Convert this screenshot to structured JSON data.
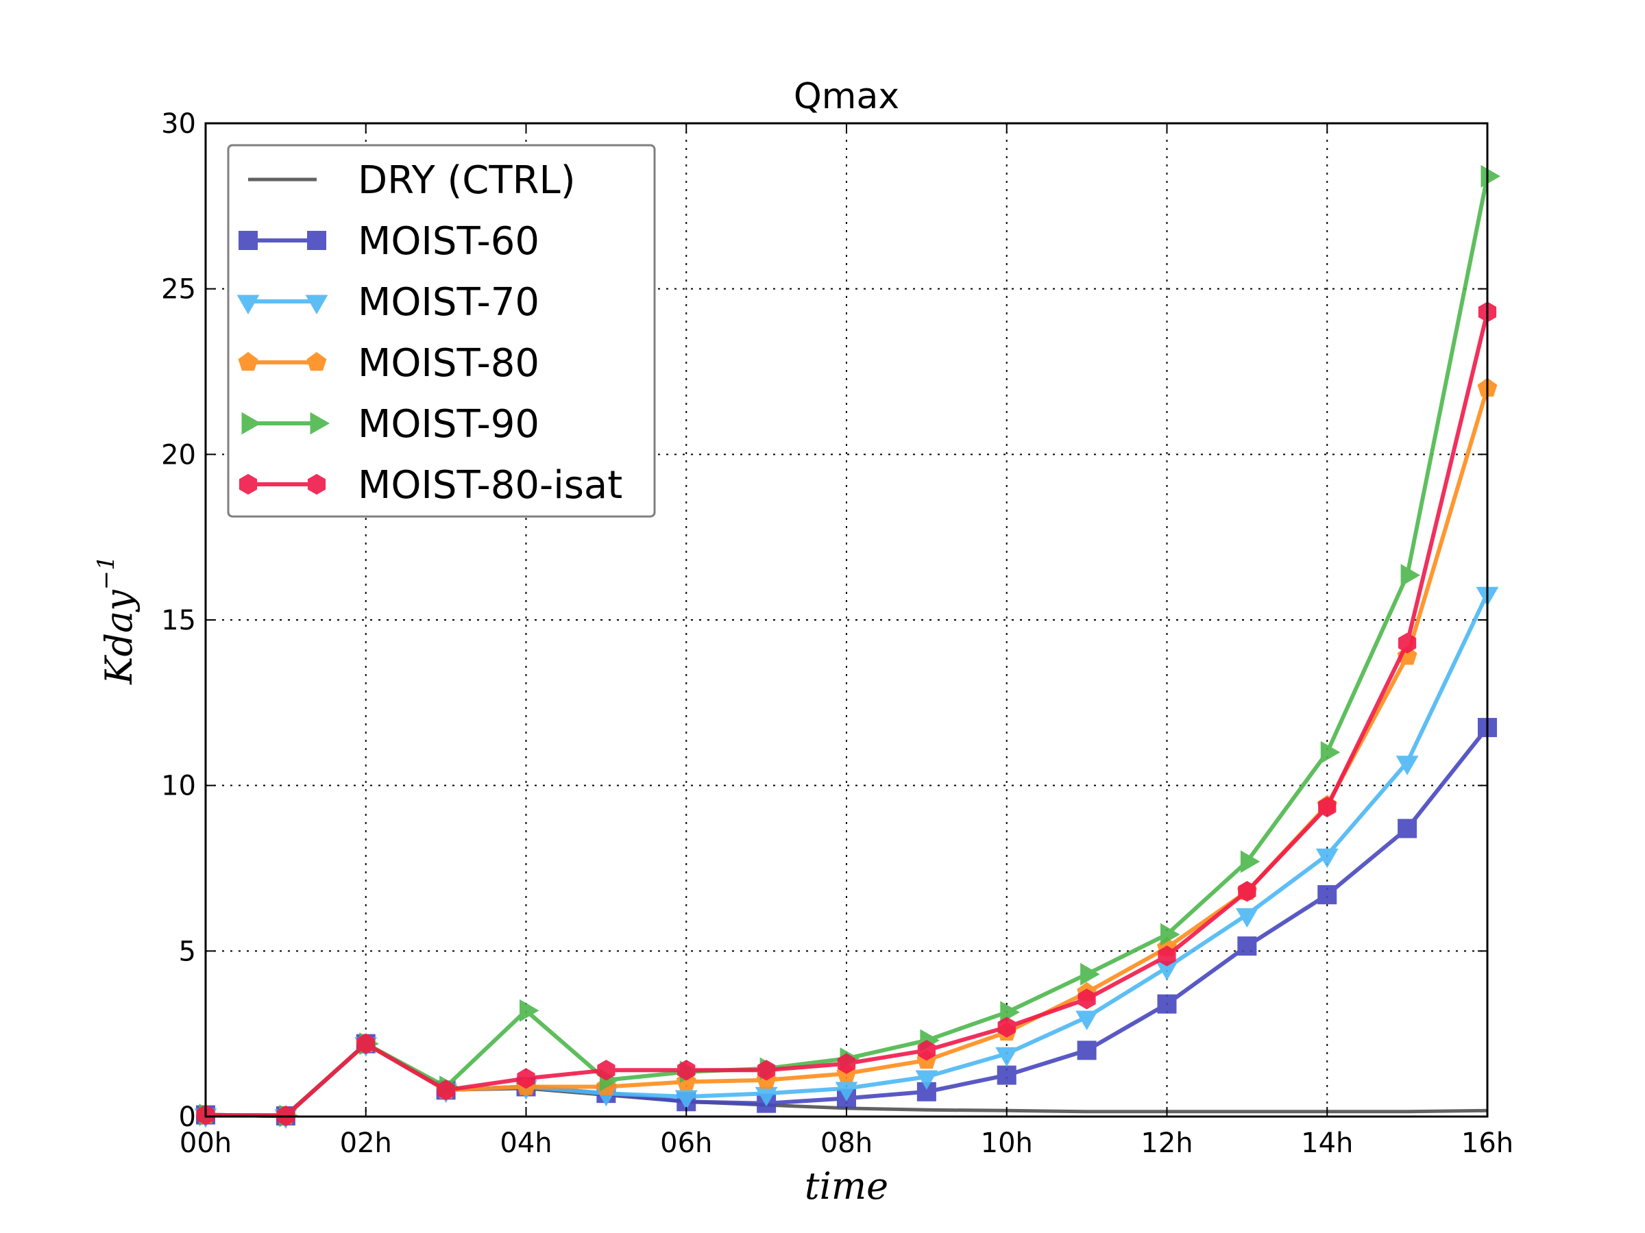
{
  "chart_data": {
    "type": "line",
    "title": "Qmax",
    "xlabel": "time",
    "ylabel": "Kday",
    "ylabel_superscript": "−1",
    "x": [
      0,
      1,
      2,
      3,
      4,
      5,
      6,
      7,
      8,
      9,
      10,
      11,
      12,
      13,
      14,
      15,
      16
    ],
    "x_ticks": [
      0,
      2,
      4,
      6,
      8,
      10,
      12,
      14,
      16
    ],
    "x_tick_labels": [
      "00h",
      "02h",
      "04h",
      "06h",
      "08h",
      "10h",
      "12h",
      "14h",
      "16h"
    ],
    "xlim": [
      0,
      16
    ],
    "ylim": [
      0,
      30
    ],
    "y_ticks": [
      0,
      5,
      10,
      15,
      20,
      25,
      30
    ],
    "y_tick_labels": [
      "0",
      "5",
      "10",
      "15",
      "20",
      "25",
      "30"
    ],
    "grid": true,
    "legend_position": "top-left",
    "series": [
      {
        "name": "DRY (CTRL)",
        "color": "#505050",
        "marker": "none",
        "values": [
          0.05,
          0.05,
          2.2,
          0.8,
          0.85,
          0.65,
          0.45,
          0.35,
          0.25,
          0.2,
          0.18,
          0.15,
          0.15,
          0.15,
          0.15,
          0.15,
          0.18
        ]
      },
      {
        "name": "MOIST-60",
        "color": "#4848bf",
        "marker": "square",
        "values": [
          0.05,
          0.02,
          2.2,
          0.8,
          0.9,
          0.7,
          0.45,
          0.4,
          0.55,
          0.75,
          1.25,
          2.0,
          3.4,
          5.15,
          6.7,
          8.7,
          11.75
        ]
      },
      {
        "name": "MOIST-70",
        "color": "#4cb8f5",
        "marker": "triangle-down",
        "values": [
          0.05,
          0.02,
          2.2,
          0.8,
          0.9,
          0.7,
          0.6,
          0.7,
          0.85,
          1.2,
          1.9,
          3.0,
          4.5,
          6.1,
          7.9,
          10.7,
          15.8
        ]
      },
      {
        "name": "MOIST-80",
        "color": "#ff8c1a",
        "marker": "pentagon",
        "values": [
          0.05,
          0.02,
          2.2,
          0.8,
          0.9,
          0.9,
          1.05,
          1.1,
          1.3,
          1.7,
          2.55,
          3.75,
          5.1,
          6.8,
          9.4,
          13.9,
          22.0
        ]
      },
      {
        "name": "MOIST-90",
        "color": "#4db84d",
        "marker": "triangle-right",
        "values": [
          0.05,
          0.02,
          2.2,
          0.9,
          3.2,
          1.1,
          1.35,
          1.45,
          1.75,
          2.3,
          3.15,
          4.3,
          5.5,
          7.7,
          11.0,
          16.35,
          28.4
        ]
      },
      {
        "name": "MOIST-80-isat",
        "color": "#f0194a",
        "marker": "hexagon",
        "values": [
          0.05,
          0.02,
          2.2,
          0.8,
          1.15,
          1.4,
          1.4,
          1.4,
          1.6,
          2.0,
          2.7,
          3.55,
          4.85,
          6.8,
          9.35,
          14.3,
          24.3
        ]
      }
    ]
  }
}
